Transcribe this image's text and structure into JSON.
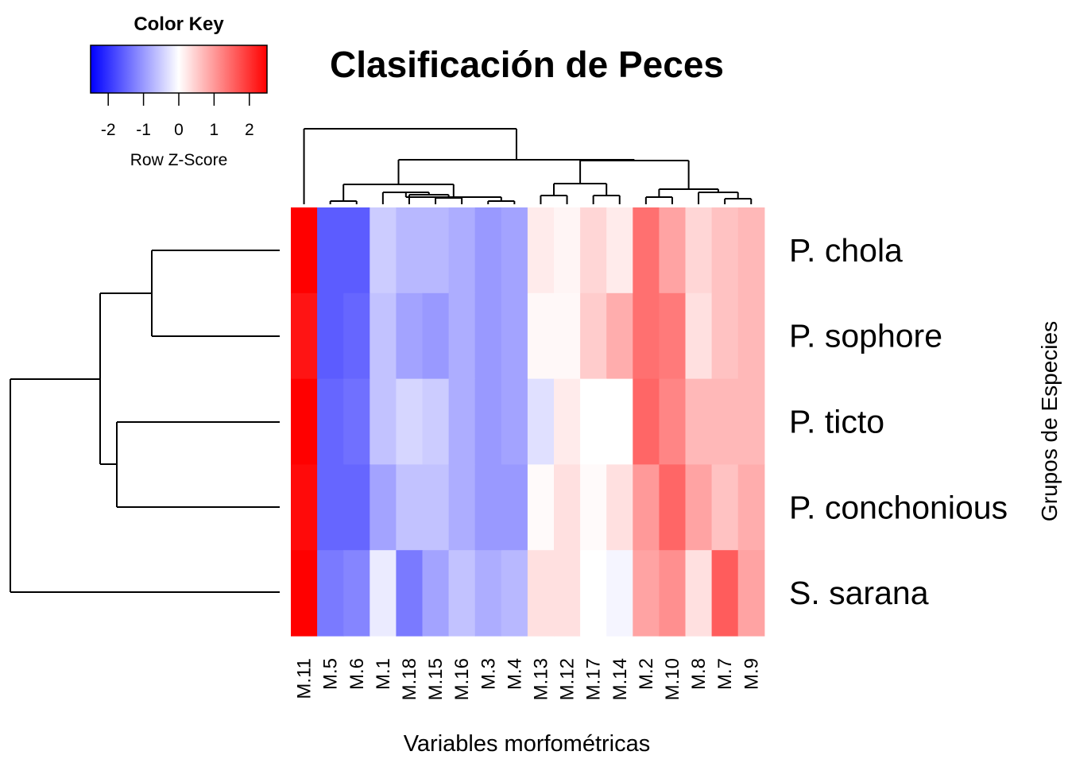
{
  "chart_data": {
    "type": "heatmap",
    "title": "Clasificación de Peces",
    "xlabel": "Variables morfométricas",
    "ylabel": "Grupos de Especies",
    "columns": [
      "M.11",
      "M.5",
      "M.6",
      "M.1",
      "M.18",
      "M.15",
      "M.16",
      "M.3",
      "M.4",
      "M.13",
      "M.12",
      "M.17",
      "M.14",
      "M.2",
      "M.10",
      "M.8",
      "M.7",
      "M.9"
    ],
    "rows": [
      "P. chola",
      "P. sophore",
      "P. ticto",
      "P. conchonious",
      "S. sarana"
    ],
    "values": [
      [
        2.5,
        -1.6,
        -1.6,
        -0.5,
        -0.7,
        -0.7,
        -0.8,
        -1.0,
        -0.9,
        0.2,
        0.1,
        0.4,
        0.2,
        1.4,
        0.9,
        0.4,
        0.6,
        0.7
      ],
      [
        2.3,
        -1.6,
        -1.5,
        -0.6,
        -0.9,
        -1.0,
        -0.8,
        -1.0,
        -0.9,
        0.07,
        0.07,
        0.5,
        0.8,
        1.4,
        1.3,
        0.3,
        0.6,
        0.7
      ],
      [
        2.5,
        -1.5,
        -1.4,
        -0.6,
        -0.4,
        -0.5,
        -0.8,
        -1.0,
        -0.9,
        -0.3,
        0.2,
        0.0,
        0.0,
        1.5,
        1.2,
        0.7,
        0.7,
        0.7
      ],
      [
        2.4,
        -1.5,
        -1.5,
        -0.9,
        -0.6,
        -0.6,
        -0.8,
        -1.0,
        -1.0,
        0.05,
        0.3,
        0.05,
        0.3,
        1.0,
        1.5,
        0.9,
        0.6,
        0.8
      ],
      [
        2.5,
        -1.3,
        -1.2,
        -0.2,
        -1.3,
        -0.9,
        -0.6,
        -0.8,
        -0.7,
        0.3,
        0.3,
        0.0,
        -0.1,
        0.9,
        1.1,
        0.3,
        1.6,
        0.9
      ]
    ],
    "color_key": {
      "title": "Color Key",
      "label": "Row Z-Score",
      "ticks": [
        -2,
        -1,
        0,
        1,
        2
      ],
      "range": [
        -2.5,
        2.5
      ],
      "low_color": "#0000ff",
      "mid_color": "#ffffff",
      "high_color": "#ff0000"
    },
    "row_dendrogram": [
      [
        1,
        2
      ],
      [
        3,
        4
      ],
      [
        -2,
        -1
      ],
      [
        5,
        2
      ],
      [
        -3,
        3
      ],
      [
        -5,
        4
      ]
    ],
    "row_merge_heights": [
      0.35,
      0.55,
      0.7,
      0.9,
      1.0,
      1.0
    ],
    "col_dendrogram_order": "M.11 | ((M.5,M.6),((M.1,(M.18,(M.15,M.16))),(M.3,M.4))) | ((M.13,M.12),(M.17,M.14)) | ((M.2,M.10),(M.8,(M.7,M.9)))"
  }
}
